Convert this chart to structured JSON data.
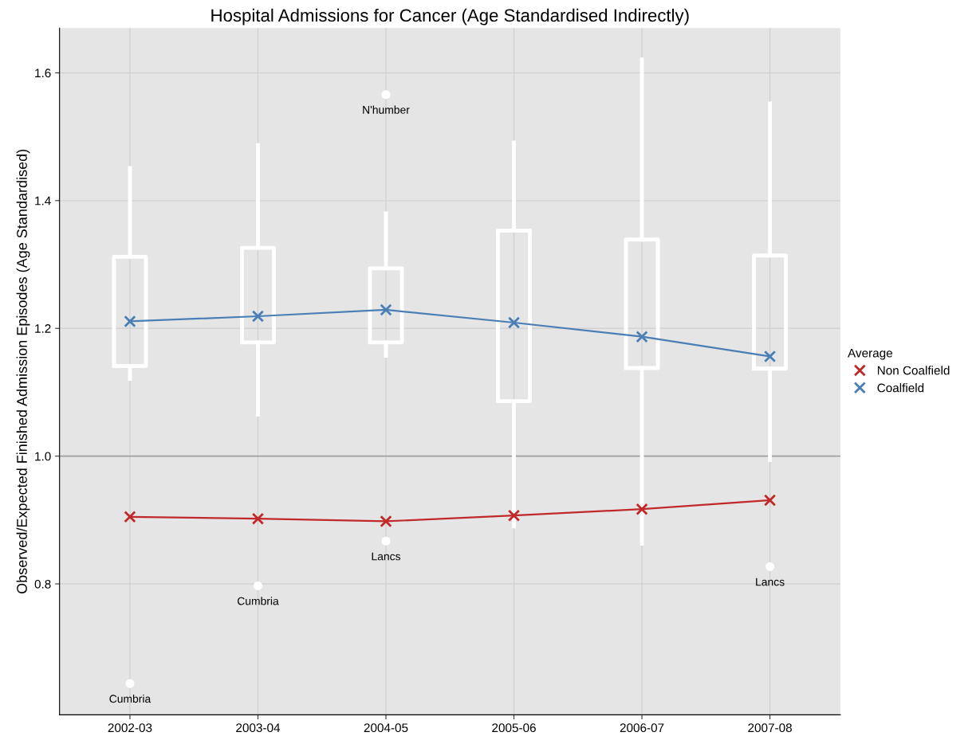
{
  "chart_data": {
    "type": "box",
    "title": "Hospital Admissions for Cancer (Age Standardised Indirectly)",
    "ylabel": "Observed/Expected Finished Admission Episodes (Age Standardised)",
    "legend_title": "Average",
    "categories": [
      "2002-03",
      "2003-04",
      "2004-05",
      "2005-06",
      "2006-07",
      "2007-08"
    ],
    "boxes": [
      {
        "low": 1.121,
        "q1": 1.141,
        "q3": 1.312,
        "high": 1.451,
        "outliers": [
          0.644
        ]
      },
      {
        "low": 1.065,
        "q1": 1.178,
        "q3": 1.326,
        "high": 1.487,
        "outliers": [
          0.797
        ]
      },
      {
        "low": 1.157,
        "q1": 1.178,
        "q3": 1.294,
        "high": 1.38,
        "outliers": [
          1.566,
          0.867
        ]
      },
      {
        "low": 0.89,
        "q1": 1.086,
        "q3": 1.353,
        "high": 1.491
      },
      {
        "low": 0.863,
        "q1": 1.138,
        "q3": 1.339,
        "high": 1.621
      },
      {
        "low": 0.994,
        "q1": 1.137,
        "q3": 1.314,
        "high": 1.552,
        "outliers": [
          0.827
        ]
      }
    ],
    "series": [
      {
        "name": "Non Coalfield",
        "type": "line",
        "color": "#c0282a",
        "values": [
          0.905,
          0.902,
          0.898,
          0.907,
          0.917,
          0.931
        ]
      },
      {
        "name": "Coalfield",
        "type": "line",
        "color": "#4a7fb5",
        "values": [
          1.211,
          1.219,
          1.229,
          1.209,
          1.187,
          1.156
        ]
      }
    ],
    "annotations": [
      "Cumbria",
      "Cumbria",
      "N'humber",
      "Lancs",
      "Lancs"
    ],
    "ref_lines": [
      {
        "axis": "y",
        "value": 1.0,
        "color": "#a0a0a0"
      }
    ],
    "ylim": [
      0.595,
      1.67
    ],
    "yticks": [
      0.8,
      {
        "value": 1.0,
        "label": "1.0"
      },
      1.2,
      1.4,
      1.6
    ],
    "grid": true,
    "legend": "right",
    "marker": "cross",
    "line_style": "solid"
  }
}
